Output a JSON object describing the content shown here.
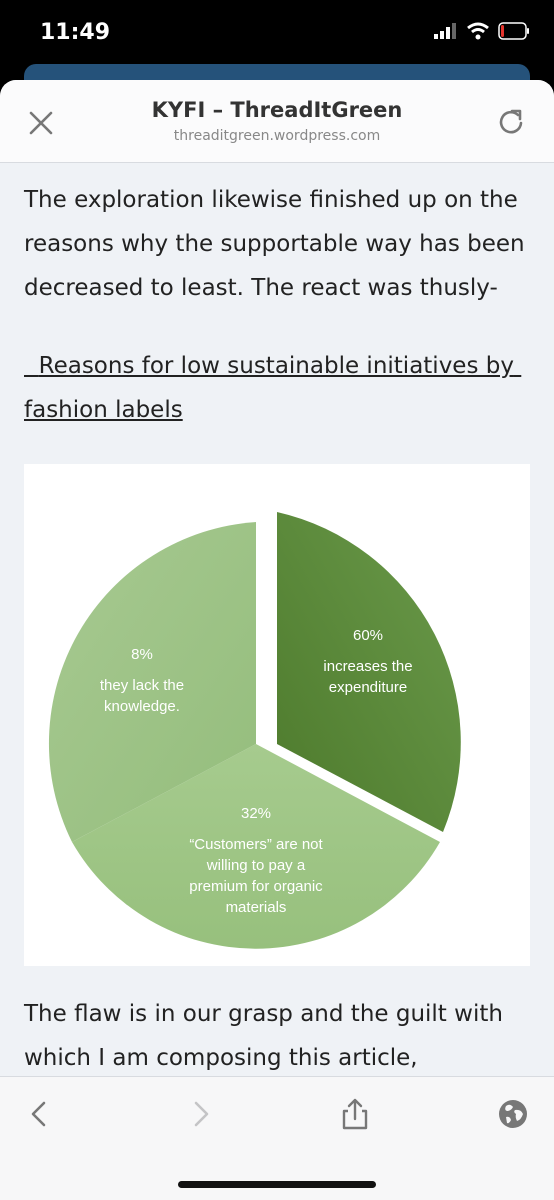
{
  "status_bar": {
    "time": "11:49"
  },
  "header": {
    "title": "KYFI – ThreadItGreen",
    "url": "threaditgreen.wordpress.com"
  },
  "article": {
    "paragraph1": "The exploration likewise finished up on the reasons why the supportable way has been decreased to least. The react was thusly-",
    "heading": "  Reasons for low sustainable initiatives by fashion labels",
    "paragraph2": "The flaw is in our grasp and the guilt with which I am composing this article,"
  },
  "chart_data": {
    "type": "pie",
    "slices": [
      {
        "percent_label": "60%",
        "label_lines": [
          "increases the",
          "expenditure"
        ],
        "value": 60,
        "color": "#5a8a3e",
        "exploded": true
      },
      {
        "percent_label": "32%",
        "label_lines": [
          "“Customers” are not",
          "willing to pay a",
          "premium for organic",
          "materials"
        ],
        "value": 32,
        "color": "#9ec485",
        "exploded": false
      },
      {
        "percent_label": "8%",
        "label_lines": [
          "they lack the",
          "knowledge."
        ],
        "value": 8,
        "color": "#a3c68c",
        "exploded": false
      }
    ]
  },
  "icons": {
    "close": "close-icon",
    "reload": "reload-icon",
    "back": "chevron-left-icon",
    "forward": "chevron-right-icon",
    "share": "share-icon",
    "globe": "globe-icon"
  }
}
